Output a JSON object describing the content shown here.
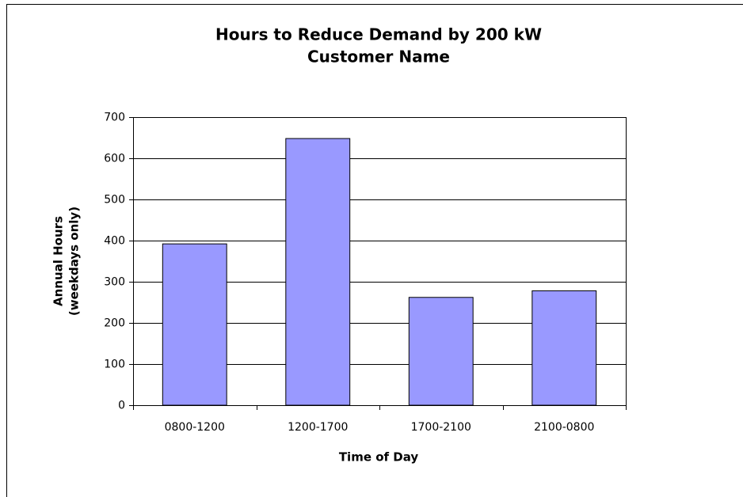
{
  "chart_data": {
    "type": "bar",
    "title": "Hours to Reduce Demand by 200 kW",
    "subtitle": "Customer Name",
    "xlabel": "Time of Day",
    "ylabel": [
      "Annual Hours",
      "(weekdays only)"
    ],
    "categories": [
      "0800-1200",
      "1200-1700",
      "1700-2100",
      "2100-0800"
    ],
    "values": [
      392,
      648,
      262,
      278
    ],
    "color": "#9999ff",
    "ylim": [
      0,
      700
    ],
    "yticks": [
      0,
      100,
      200,
      300,
      400,
      500,
      600,
      700
    ],
    "grid": true
  }
}
